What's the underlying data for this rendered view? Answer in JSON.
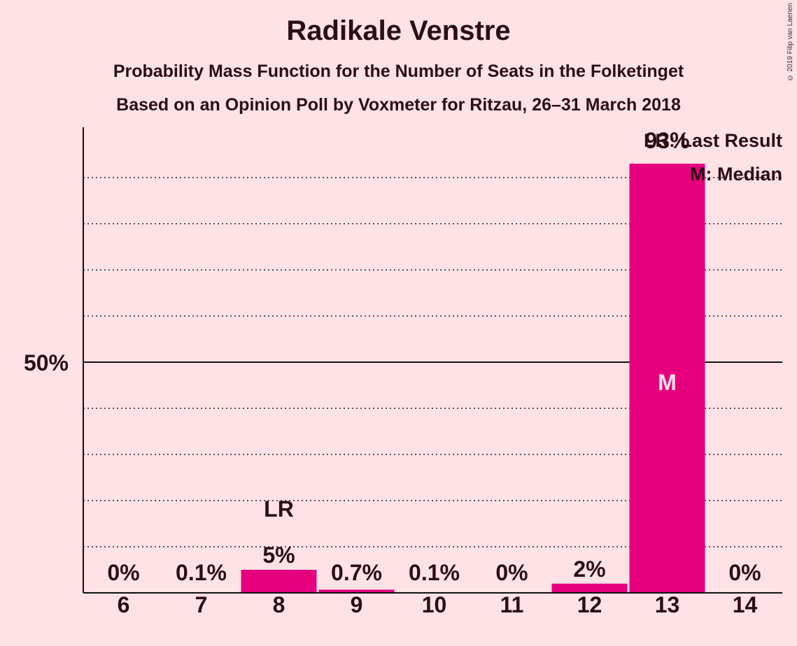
{
  "header": {
    "title": "Radikale Venstre",
    "subtitle1": "Probability Mass Function for the Number of Seats in the Folketinget",
    "subtitle2": "Based on an Opinion Poll by Voxmeter for Ritzau, 26–31 March 2018",
    "copyright": "© 2019 Filip van Laenen"
  },
  "colors": {
    "background": "#FFE2E6",
    "bar": "#E6007E",
    "text": "#2a0f14"
  },
  "chart_data": {
    "type": "bar",
    "categories": [
      "6",
      "7",
      "8",
      "9",
      "10",
      "11",
      "12",
      "13",
      "14"
    ],
    "values": [
      0,
      0.1,
      5,
      0.7,
      0.1,
      0,
      2,
      93,
      0
    ],
    "value_labels": [
      "0%",
      "0.1%",
      "5%",
      "0.7%",
      "0.1%",
      "0%",
      "2%",
      "93%",
      "0%"
    ],
    "ylim": [
      0,
      100
    ],
    "y_tick_labels": [
      {
        "value": 50,
        "label": "50%"
      }
    ],
    "grid": true,
    "annotations": [
      {
        "category": "8",
        "text": "LR"
      },
      {
        "category": "13",
        "text": "M"
      }
    ],
    "legend": [
      "LR: Last Result",
      "M: Median"
    ],
    "legend_position": "top-right"
  }
}
